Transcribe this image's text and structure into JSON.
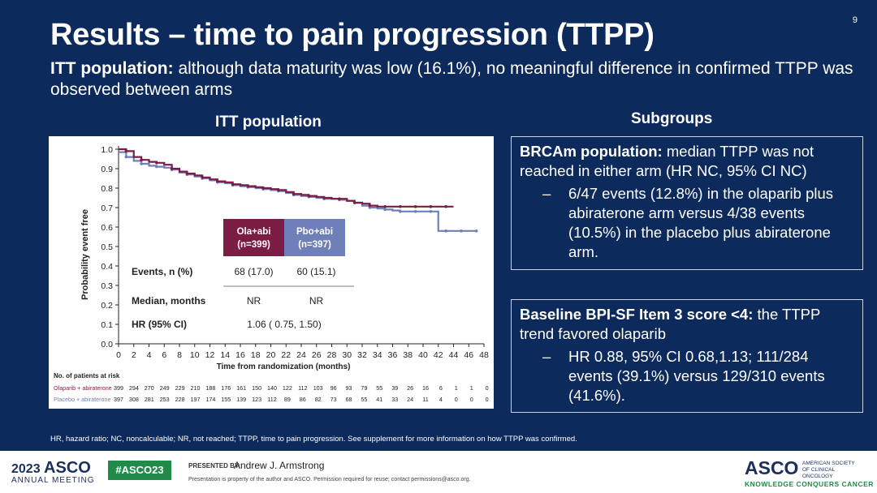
{
  "slide_number": "9",
  "title": "Results – time to pain progression (TTPP)",
  "subtitle": {
    "bold": "ITT population:",
    "text": " although data maturity was low (16.1%), no meaningful difference in confirmed TTPP was observed between arms"
  },
  "left_heading": "ITT population",
  "right_heading": "Subgroups",
  "colors": {
    "olaparib": "#7b1c44",
    "placebo": "#6f7fb9",
    "background": "#0d2a5c"
  },
  "chart_data": {
    "type": "line",
    "title": "ITT population",
    "xlabel": "Time from randomization (months)",
    "ylabel": "Probability event free",
    "xlim": [
      0,
      48
    ],
    "ylim": [
      0,
      1.0
    ],
    "x_ticks": [
      "0",
      "2",
      "4",
      "6",
      "8",
      "10",
      "12",
      "14",
      "16",
      "18",
      "20",
      "22",
      "24",
      "26",
      "28",
      "30",
      "32",
      "34",
      "36",
      "38",
      "40",
      "42",
      "44",
      "46",
      "48"
    ],
    "y_ticks": [
      "0.0",
      "0.1",
      "0.2",
      "0.3",
      "0.4",
      "0.5",
      "0.6",
      "0.7",
      "0.8",
      "0.9",
      "1.0"
    ],
    "series": [
      {
        "name": "Olaparib + abiraterone",
        "color": "#7b1c44",
        "points": [
          [
            0,
            1.0
          ],
          [
            1,
            0.99
          ],
          [
            2,
            0.96
          ],
          [
            3,
            0.945
          ],
          [
            4,
            0.935
          ],
          [
            5,
            0.93
          ],
          [
            6,
            0.92
          ],
          [
            7,
            0.9
          ],
          [
            8,
            0.885
          ],
          [
            9,
            0.875
          ],
          [
            10,
            0.865
          ],
          [
            11,
            0.855
          ],
          [
            12,
            0.845
          ],
          [
            13,
            0.835
          ],
          [
            14,
            0.83
          ],
          [
            15,
            0.82
          ],
          [
            16,
            0.815
          ],
          [
            17,
            0.81
          ],
          [
            18,
            0.805
          ],
          [
            19,
            0.8
          ],
          [
            20,
            0.795
          ],
          [
            21,
            0.79
          ],
          [
            22,
            0.78
          ],
          [
            23,
            0.77
          ],
          [
            24,
            0.765
          ],
          [
            25,
            0.76
          ],
          [
            26,
            0.755
          ],
          [
            27,
            0.75
          ],
          [
            28,
            0.745
          ],
          [
            29,
            0.745
          ],
          [
            30,
            0.735
          ],
          [
            31,
            0.725
          ],
          [
            32,
            0.72
          ],
          [
            33,
            0.71
          ],
          [
            34,
            0.705
          ],
          [
            35,
            0.705
          ],
          [
            36,
            0.705
          ],
          [
            37,
            0.705
          ],
          [
            38,
            0.705
          ],
          [
            39,
            0.705
          ],
          [
            40,
            0.705
          ],
          [
            41,
            0.705
          ],
          [
            42,
            0.705
          ],
          [
            43,
            0.705
          ],
          [
            44,
            0.705
          ]
        ]
      },
      {
        "name": "Placebo + abiraterone",
        "color": "#6f7fb9",
        "points": [
          [
            0,
            0.985
          ],
          [
            1,
            0.96
          ],
          [
            2,
            0.94
          ],
          [
            3,
            0.925
          ],
          [
            4,
            0.915
          ],
          [
            5,
            0.91
          ],
          [
            6,
            0.905
          ],
          [
            7,
            0.895
          ],
          [
            8,
            0.88
          ],
          [
            9,
            0.87
          ],
          [
            10,
            0.86
          ],
          [
            11,
            0.85
          ],
          [
            12,
            0.84
          ],
          [
            13,
            0.83
          ],
          [
            14,
            0.825
          ],
          [
            15,
            0.815
          ],
          [
            16,
            0.81
          ],
          [
            17,
            0.805
          ],
          [
            18,
            0.8
          ],
          [
            19,
            0.795
          ],
          [
            20,
            0.79
          ],
          [
            21,
            0.785
          ],
          [
            22,
            0.775
          ],
          [
            23,
            0.765
          ],
          [
            24,
            0.76
          ],
          [
            25,
            0.755
          ],
          [
            26,
            0.75
          ],
          [
            27,
            0.745
          ],
          [
            28,
            0.745
          ],
          [
            29,
            0.74
          ],
          [
            30,
            0.735
          ],
          [
            31,
            0.725
          ],
          [
            32,
            0.71
          ],
          [
            33,
            0.7
          ],
          [
            34,
            0.695
          ],
          [
            35,
            0.69
          ],
          [
            36,
            0.685
          ],
          [
            37,
            0.68
          ],
          [
            38,
            0.68
          ],
          [
            39,
            0.68
          ],
          [
            40,
            0.68
          ],
          [
            41,
            0.68
          ],
          [
            42,
            0.58
          ],
          [
            43,
            0.58
          ],
          [
            44,
            0.58
          ],
          [
            45,
            0.58
          ],
          [
            46,
            0.58
          ],
          [
            47,
            0.58
          ]
        ]
      }
    ],
    "table": {
      "header_ola": [
        "Ola+abi",
        "(n=399)"
      ],
      "header_pbo": [
        "Pbo+abi",
        "(n=397)"
      ],
      "rows": [
        {
          "label": "Events, n (%)",
          "ola": "68 (17.0)",
          "pbo": "60 (15.1)"
        },
        {
          "label": "Median, months",
          "ola": "NR",
          "pbo": "NR"
        },
        {
          "label": "HR (95% CI)",
          "combined": "1.06 ( 0.75, 1.50)"
        }
      ]
    },
    "at_risk": {
      "title": "No. of patients at risk",
      "rows": [
        {
          "label": "Olaparib + abiraterone",
          "values": [
            "399",
            "294",
            "270",
            "249",
            "229",
            "210",
            "188",
            "176",
            "161",
            "150",
            "140",
            "122",
            "112",
            "103",
            "96",
            "93",
            "79",
            "55",
            "39",
            "26",
            "16",
            "6",
            "1",
            "1",
            "0"
          ]
        },
        {
          "label": "Placebo + abiraterone",
          "values": [
            "397",
            "308",
            "281",
            "253",
            "228",
            "197",
            "174",
            "155",
            "139",
            "123",
            "112",
            "89",
            "86",
            "82",
            "73",
            "68",
            "55",
            "41",
            "33",
            "24",
            "11",
            "4",
            "0",
            "0",
            "0"
          ]
        }
      ]
    }
  },
  "brca_box": {
    "bold": "BRCAm population:",
    "text": " median TTPP was not reached in either arm (HR NC, 95% CI NC)",
    "bullet": "6/47 events (12.8%) in the olaparib plus abiraterone arm versus 4/38 events (10.5%) in the placebo plus abiraterone arm."
  },
  "bpi_box": {
    "bold": "Baseline BPI-SF Item 3 score <4:",
    "text": " the TTPP trend favored olaparib",
    "bullet": "HR 0.88, 95% CI 0.68,1.13; 111/284 events (39.1%) versus 129/310 events (41.6%)."
  },
  "bullet_dash": "–",
  "footnote": "HR, hazard ratio; NC, noncalculable; NR, not reached; TTPP, time to pain progression. See supplement for more information on how TTPP was confirmed.",
  "footer": {
    "year": "2023",
    "asco": "ASCO",
    "meeting": "ANNUAL MEETING",
    "hashtag": "#ASCO23",
    "presented_by": "PRESENTED BY:",
    "presenter": "Andrew J. Armstrong",
    "legal": "Presentation is property of the author and ASCO. Permission required for reuse; contact permissions@asco.org.",
    "logo": "ASCO",
    "org": "AMERICAN SOCIETY OF CLINICAL ONCOLOGY",
    "tagline": "KNOWLEDGE CONQUERS CANCER"
  }
}
